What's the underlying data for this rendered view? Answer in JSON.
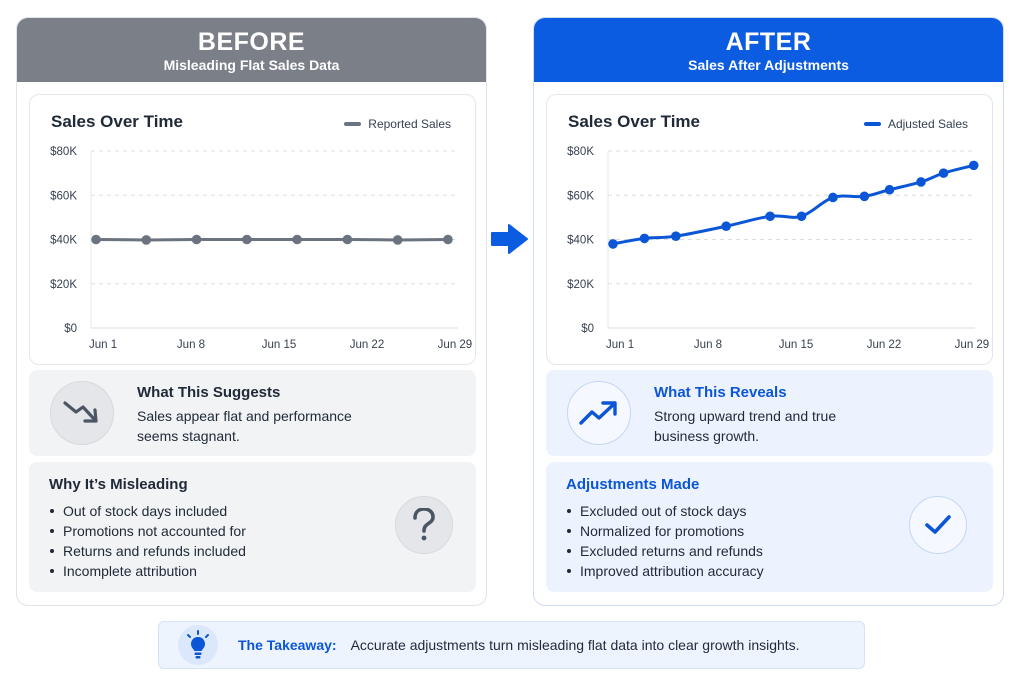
{
  "before": {
    "title": "BEFORE",
    "subtitle": "Misleading Flat Sales Data",
    "chart_title": "Sales Over Time",
    "suggest_heading": "What This Suggests",
    "suggest_text": "Sales appear flat and performance seems stagnant.",
    "list_heading": "Why It’s Misleading",
    "list_items": [
      "Out of stock days included",
      "Promotions not accounted for",
      "Returns and refunds included",
      "Incomplete attribution"
    ],
    "suggest_icon": "trend-down-icon",
    "list_icon": "question-icon",
    "colors": {
      "header": "#7b7f87",
      "line": "#6b7280"
    }
  },
  "after": {
    "title": "AFTER",
    "subtitle": "Sales After Adjustments",
    "chart_title": "Sales Over Time",
    "suggest_heading": "What This Reveals",
    "suggest_text": "Strong upward trend and true business growth.",
    "list_heading": "Adjustments Made",
    "list_items": [
      "Excluded out of stock days",
      "Normalized for promotions",
      "Excluded returns and refunds",
      "Improved attribution accuracy"
    ],
    "suggest_icon": "trend-up-icon",
    "list_icon": "checkmark-icon",
    "colors": {
      "header": "#0b5ce0",
      "line": "#0b56d6"
    }
  },
  "takeaway": {
    "label": "The Takeaway:",
    "text": "Accurate adjustments turn misleading flat data into clear growth insights.",
    "icon": "lightbulb-icon"
  },
  "arrow_icon": "arrow-right-icon",
  "chart_data": [
    {
      "type": "line",
      "title": "Sales Over Time",
      "series": [
        {
          "name": "Reported Sales",
          "x": [
            1,
            5,
            9,
            13,
            17,
            21,
            25,
            29
          ],
          "values": [
            40000,
            39800,
            40000,
            40000,
            40000,
            40000,
            39800,
            40000
          ]
        }
      ],
      "xticks": [
        1,
        8,
        15,
        22,
        29
      ],
      "xtick_labels": [
        "Jun 1",
        "Jun 8",
        "Jun 15",
        "Jun 22",
        "Jun 29"
      ],
      "yticks": [
        0,
        20000,
        40000,
        60000,
        80000
      ],
      "ytick_labels": [
        "$0",
        "$20K",
        "$40K",
        "$60K",
        "$80K"
      ],
      "xlim": [
        0.6,
        29.8
      ],
      "ylim": [
        0,
        80000
      ],
      "grid": true,
      "legend": "top-right",
      "xlabel": "",
      "ylabel": ""
    },
    {
      "type": "line",
      "title": "Sales Over Time",
      "series": [
        {
          "name": "Adjusted Sales",
          "x": [
            1,
            3.5,
            6,
            10,
            13.5,
            16,
            18.5,
            21,
            23,
            25.5,
            27.3,
            29.7
          ],
          "values": [
            38000,
            40500,
            41500,
            46000,
            50500,
            50500,
            59000,
            59500,
            62500,
            66000,
            70000,
            73500
          ]
        }
      ],
      "xticks": [
        1,
        8,
        15,
        22,
        29
      ],
      "xtick_labels": [
        "Jun 1",
        "Jun 8",
        "Jun 15",
        "Jun 22",
        "Jun 29"
      ],
      "yticks": [
        0,
        20000,
        40000,
        60000,
        80000
      ],
      "ytick_labels": [
        "$0",
        "$20K",
        "$40K",
        "$60K",
        "$80K"
      ],
      "xlim": [
        0.6,
        29.8
      ],
      "ylim": [
        0,
        80000
      ],
      "grid": true,
      "legend": "top-right",
      "xlabel": "",
      "ylabel": ""
    }
  ]
}
